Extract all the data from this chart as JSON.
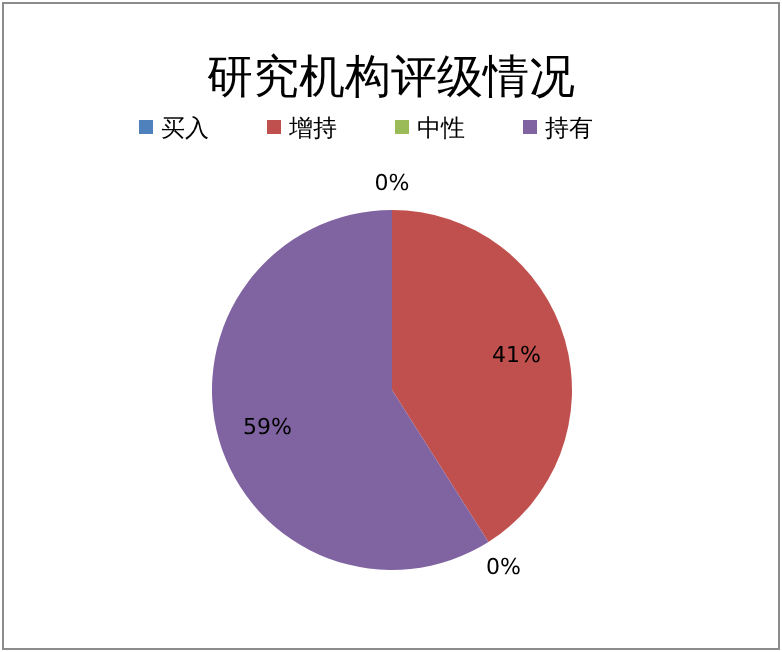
{
  "chart_data": {
    "type": "pie",
    "title": "研究机构评级情况",
    "categories": [
      "买入",
      "增持",
      "中性",
      "持有"
    ],
    "values": [
      0,
      41,
      0,
      59
    ],
    "value_labels": [
      "0%",
      "41%",
      "0%",
      "59%"
    ],
    "colors": [
      "#4f81bd",
      "#c0504d",
      "#9bbb59",
      "#8064a2"
    ],
    "legend": "top"
  }
}
